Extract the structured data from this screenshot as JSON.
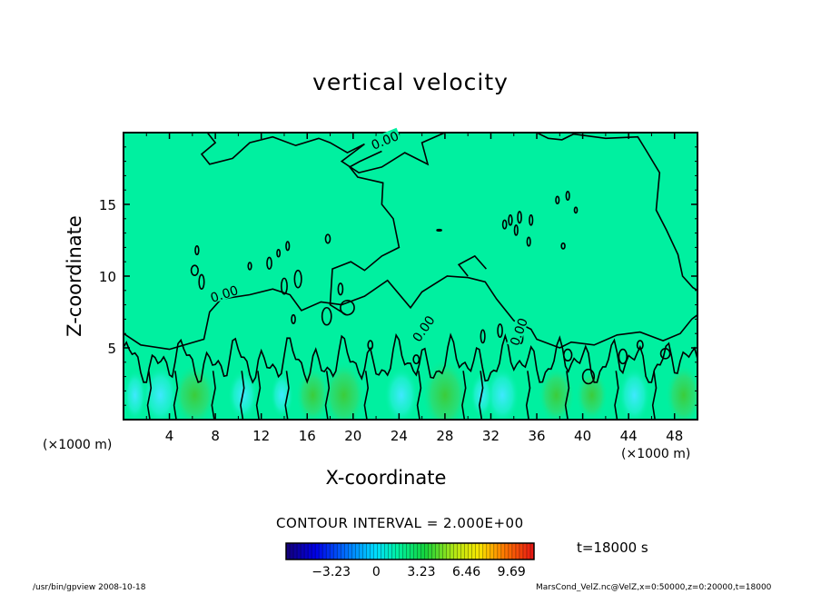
{
  "chart_data": {
    "type": "heatmap",
    "title": "vertical velocity",
    "xlabel": "X-coordinate",
    "ylabel": "Z-coordinate",
    "x_unit_left": "(×1000 m)",
    "x_unit_right": "(×1000 m)",
    "xlim": [
      0,
      50
    ],
    "ylim": [
      0,
      20
    ],
    "x_ticks": [
      4,
      8,
      12,
      16,
      20,
      24,
      28,
      32,
      36,
      40,
      44,
      48
    ],
    "y_ticks": [
      5,
      10,
      15
    ],
    "contour_labels": [
      "0.00",
      "0.00",
      "0.00",
      "0.00"
    ],
    "contour_interval": "CONTOUR INTERVAL = 2.000E+00",
    "time": "t=18000 s",
    "colorbar": {
      "ticks": [
        -3.23,
        0,
        3.23,
        6.46,
        9.69
      ],
      "tick_labels": [
        "−3.23",
        "0",
        "3.23",
        "6.46",
        "9.69"
      ],
      "range": [
        -6.46,
        11.3
      ]
    },
    "colors": {
      "field_background": "#00f0a0",
      "strong_up": "#30d030",
      "strong_down": "#40e0ff"
    },
    "footer_left": "/usr/bin/gpview   2008-10-18",
    "footer_right": "MarsCond_VelZ.nc@VelZ,x=0:50000,z=0:20000,t=18000"
  }
}
